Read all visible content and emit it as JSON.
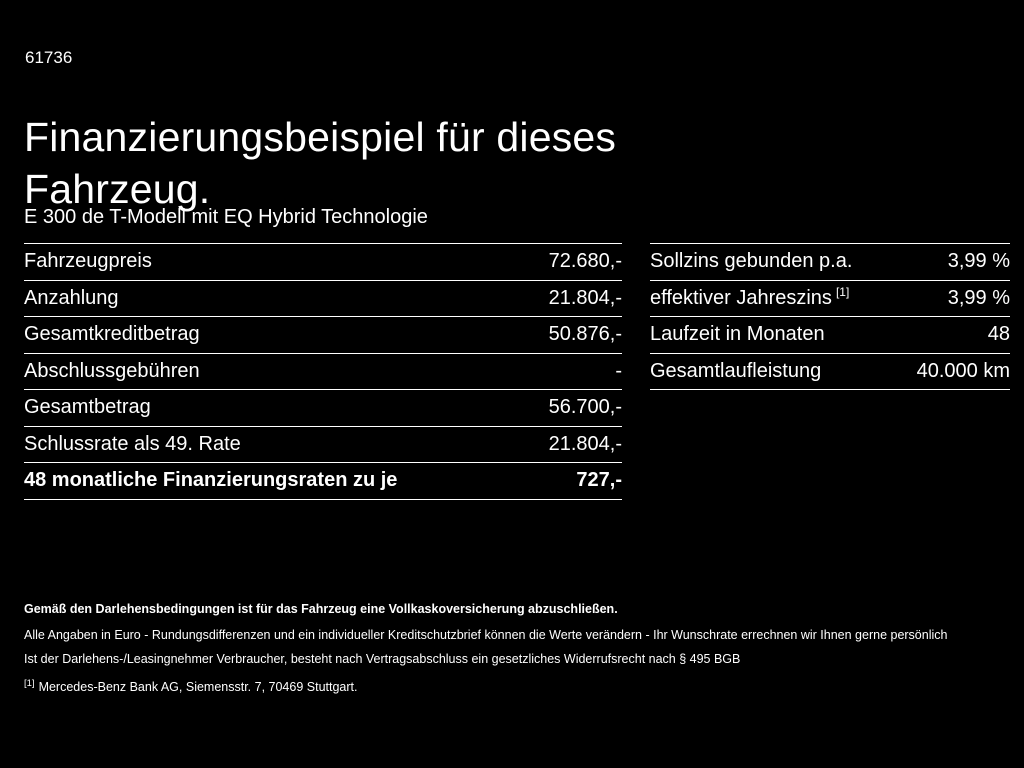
{
  "page": {
    "code": "61736",
    "title": "Finanzierungsbeispiel für dieses Fahrzeug.",
    "subtitle": "E 300 de T-Modell mit EQ Hybrid Technologie"
  },
  "left_table": {
    "rows": [
      {
        "label": "Fahrzeugpreis",
        "value": "72.680,-"
      },
      {
        "label": "Anzahlung",
        "value": "21.804,-"
      },
      {
        "label": "Gesamtkreditbetrag",
        "value": "50.876,-"
      },
      {
        "label": "Abschlussgebühren",
        "value": "-"
      },
      {
        "label": "Gesamtbetrag",
        "value": "56.700,-"
      },
      {
        "label": "Schlussrate als 49. Rate",
        "value": "21.804,-"
      },
      {
        "label": "48 monatliche Finanzierungsraten zu je",
        "value": "727,-"
      }
    ]
  },
  "right_table": {
    "rows": [
      {
        "label": "Sollzins gebunden p.a.",
        "sup": "",
        "value": "3,99 %"
      },
      {
        "label": "effektiver Jahreszins",
        "sup": "[1]",
        "value": "3,99 %"
      },
      {
        "label": "Laufzeit in Monaten",
        "sup": "",
        "value": "48"
      },
      {
        "label": "Gesamtlaufleistung",
        "sup": "",
        "value": "40.000 km"
      }
    ]
  },
  "footer": {
    "bold_line": "Gemäß den Darlehensbedingungen ist für das Fahrzeug eine Vollkaskoversicherung abzuschließen.",
    "line2": "Alle Angaben in Euro - Rundungsdifferenzen und ein individueller Kreditschutzbrief können die Werte verändern - Ihr Wunschrate errechnen wir Ihnen gerne persönlich",
    "line3": "Ist der Darlehens-/Leasingnehmer Verbraucher, besteht nach Vertragsabschluss ein gesetzliches Widerrufsrecht nach § 495 BGB",
    "ref_marker": "[1]",
    "ref_text": "Mercedes-Benz Bank AG, Siemensstr. 7, 70469 Stuttgart."
  },
  "colors": {
    "background": "#000000",
    "text": "#ffffff",
    "divider": "#ffffff"
  }
}
